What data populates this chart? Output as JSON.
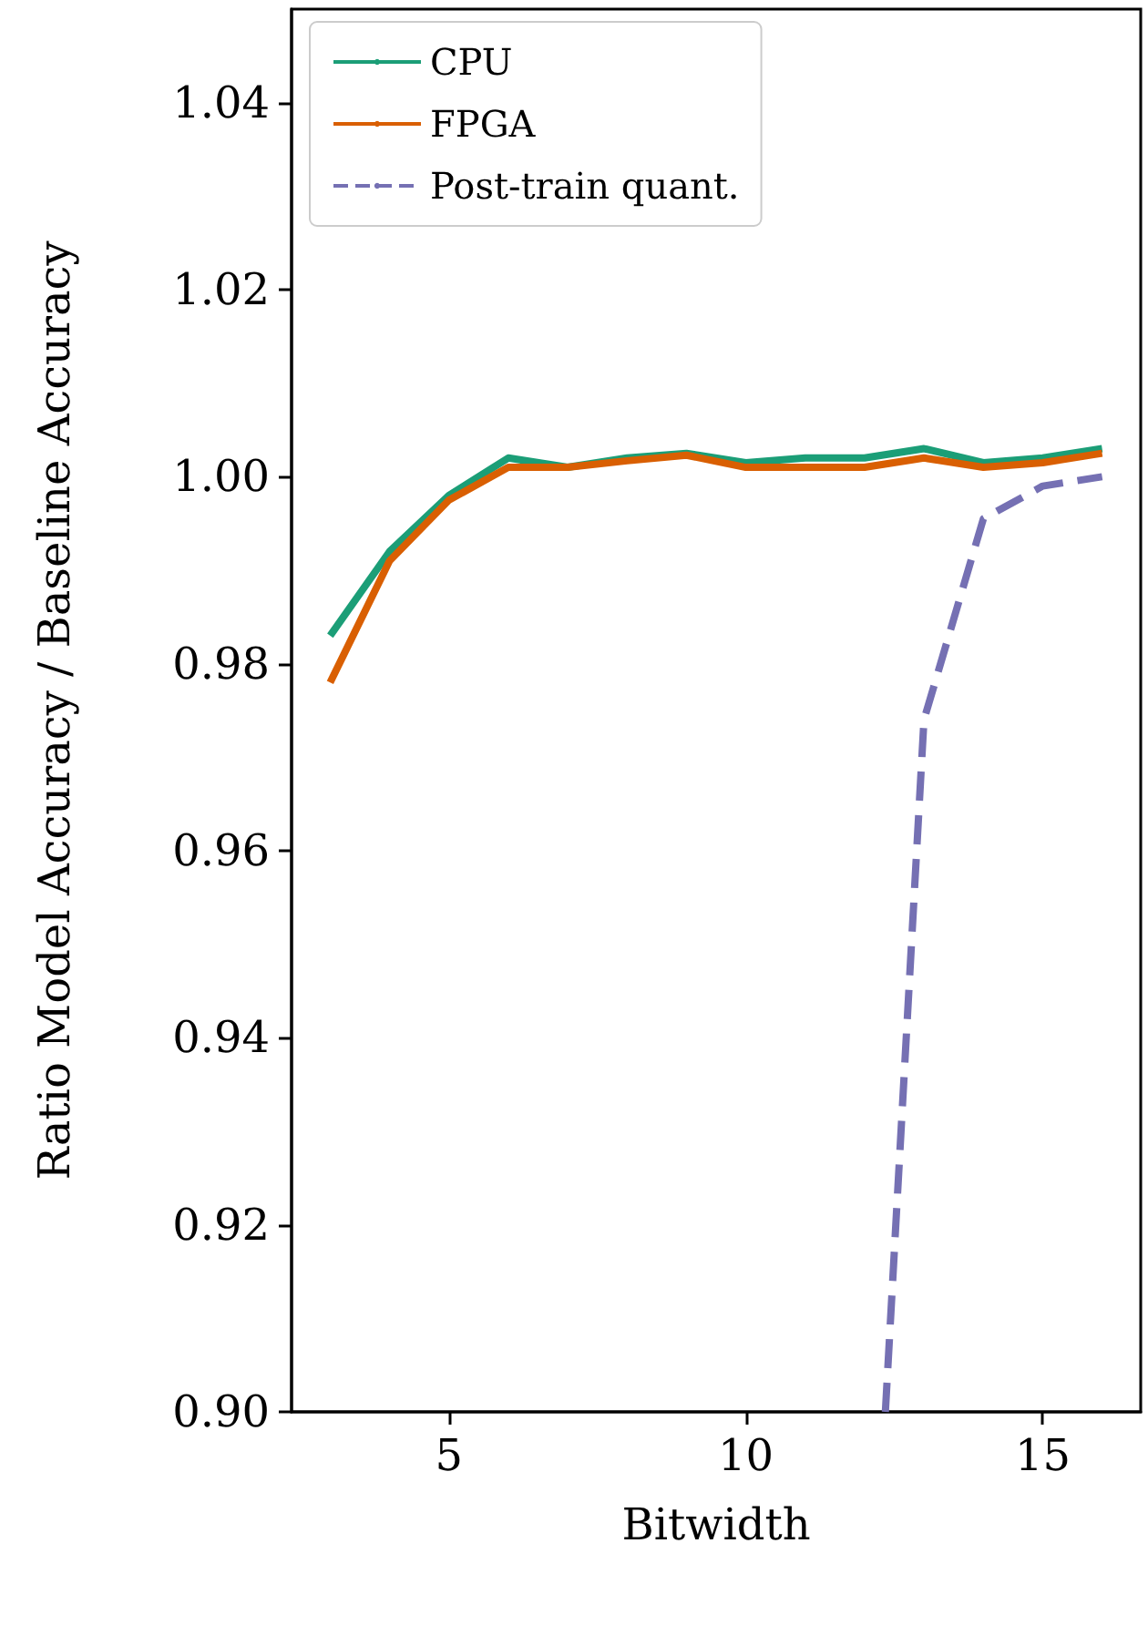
{
  "chart_data": {
    "type": "line",
    "xlabel": "Bitwidth",
    "ylabel": "Ratio Model Accuracy / Baseline Accuracy",
    "x": [
      3,
      4,
      5,
      6,
      7,
      8,
      9,
      10,
      11,
      12,
      13,
      14,
      15,
      16
    ],
    "series": [
      {
        "name": "CPU",
        "color": "#1b9e77",
        "values": [
          0.983,
          0.992,
          0.998,
          1.002,
          1.001,
          1.002,
          1.0025,
          1.0015,
          1.002,
          1.002,
          1.003,
          1.0015,
          1.002,
          1.003
        ]
      },
      {
        "name": "FPGA",
        "color": "#d95f02",
        "values": [
          0.978,
          0.991,
          0.9975,
          1.001,
          1.001,
          1.0017,
          1.0023,
          1.001,
          1.001,
          1.001,
          1.002,
          1.001,
          1.0015,
          1.0025
        ]
      },
      {
        "name": "Post-train quant.",
        "color": "#7570b3",
        "line_style": "dashed",
        "x": [
          12.35,
          13,
          14,
          15,
          16
        ],
        "values": [
          0.9,
          0.974,
          0.9955,
          0.999,
          1.0
        ]
      }
    ],
    "xlim": [
      2.35,
      16.65
    ],
    "xticks": [
      5,
      10,
      15
    ],
    "ylim": [
      0.9,
      1.05
    ],
    "yticks": [
      {
        "value": 0.9,
        "label": "0.90"
      },
      {
        "value": 0.92,
        "label": "0.92"
      },
      {
        "value": 0.94,
        "label": "0.94"
      },
      {
        "value": 0.96,
        "label": "0.96"
      },
      {
        "value": 0.98,
        "label": "0.98"
      },
      {
        "value": 1.0,
        "label": "1.00"
      },
      {
        "value": 1.02,
        "label": "1.02"
      },
      {
        "value": 1.04,
        "label": "1.04"
      }
    ],
    "grid": false,
    "legend": "top left",
    "marker": "none"
  }
}
